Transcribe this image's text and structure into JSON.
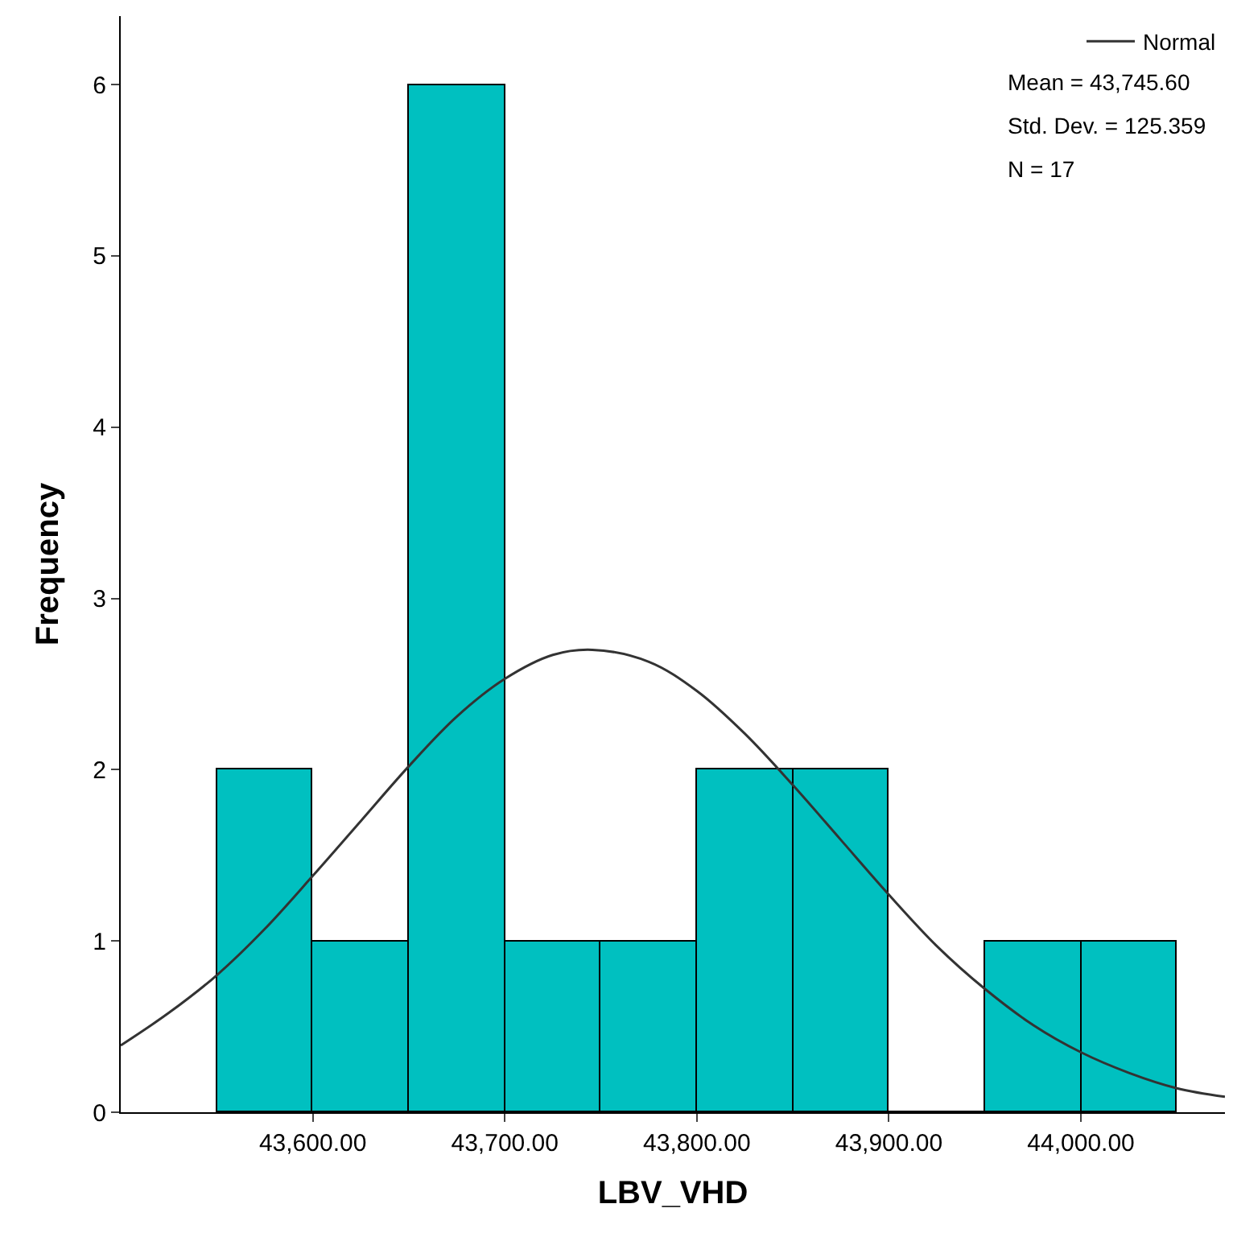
{
  "chart_data": {
    "type": "histogram",
    "xlabel": "LBV_VHD",
    "ylabel": "Frequency",
    "bins": [
      43550,
      43600,
      43650,
      43700,
      43750,
      43800,
      43850,
      43900,
      43950,
      44000,
      44050
    ],
    "values": [
      2,
      1,
      6,
      1,
      1,
      2,
      2,
      0,
      1,
      1
    ],
    "color": "#00c0c0",
    "series": [
      {
        "name": "Normal",
        "type": "line",
        "color": "#333333",
        "x": [
          43500,
          43525,
          43550,
          43575,
          43600,
          43625,
          43650,
          43675,
          43700,
          43725,
          43745.6,
          43775,
          43800,
          43825,
          43850,
          43875,
          43900,
          43925,
          43950,
          43975,
          44000,
          44025,
          44050,
          44075
        ],
        "values": [
          0.39,
          0.58,
          0.8,
          1.07,
          1.38,
          1.7,
          2.02,
          2.31,
          2.53,
          2.67,
          2.7,
          2.63,
          2.46,
          2.21,
          1.91,
          1.59,
          1.27,
          0.97,
          0.72,
          0.51,
          0.35,
          0.23,
          0.14,
          0.09
        ]
      }
    ],
    "annotations": [
      "Mean = 43,745.60",
      "Std. Dev. = 125.359",
      "N = 17"
    ],
    "xlim": [
      43500,
      44075
    ],
    "ylim": [
      0,
      6.4
    ],
    "xticks": [
      {
        "value": 43600,
        "label": "43,600.00"
      },
      {
        "value": 43700,
        "label": "43,700.00"
      },
      {
        "value": 43800,
        "label": "43,800.00"
      },
      {
        "value": 43900,
        "label": "43,900.00"
      },
      {
        "value": 44000,
        "label": "44,000.00"
      }
    ],
    "yticks": [
      0,
      1,
      2,
      3,
      4,
      5,
      6
    ],
    "legend": "top right"
  }
}
